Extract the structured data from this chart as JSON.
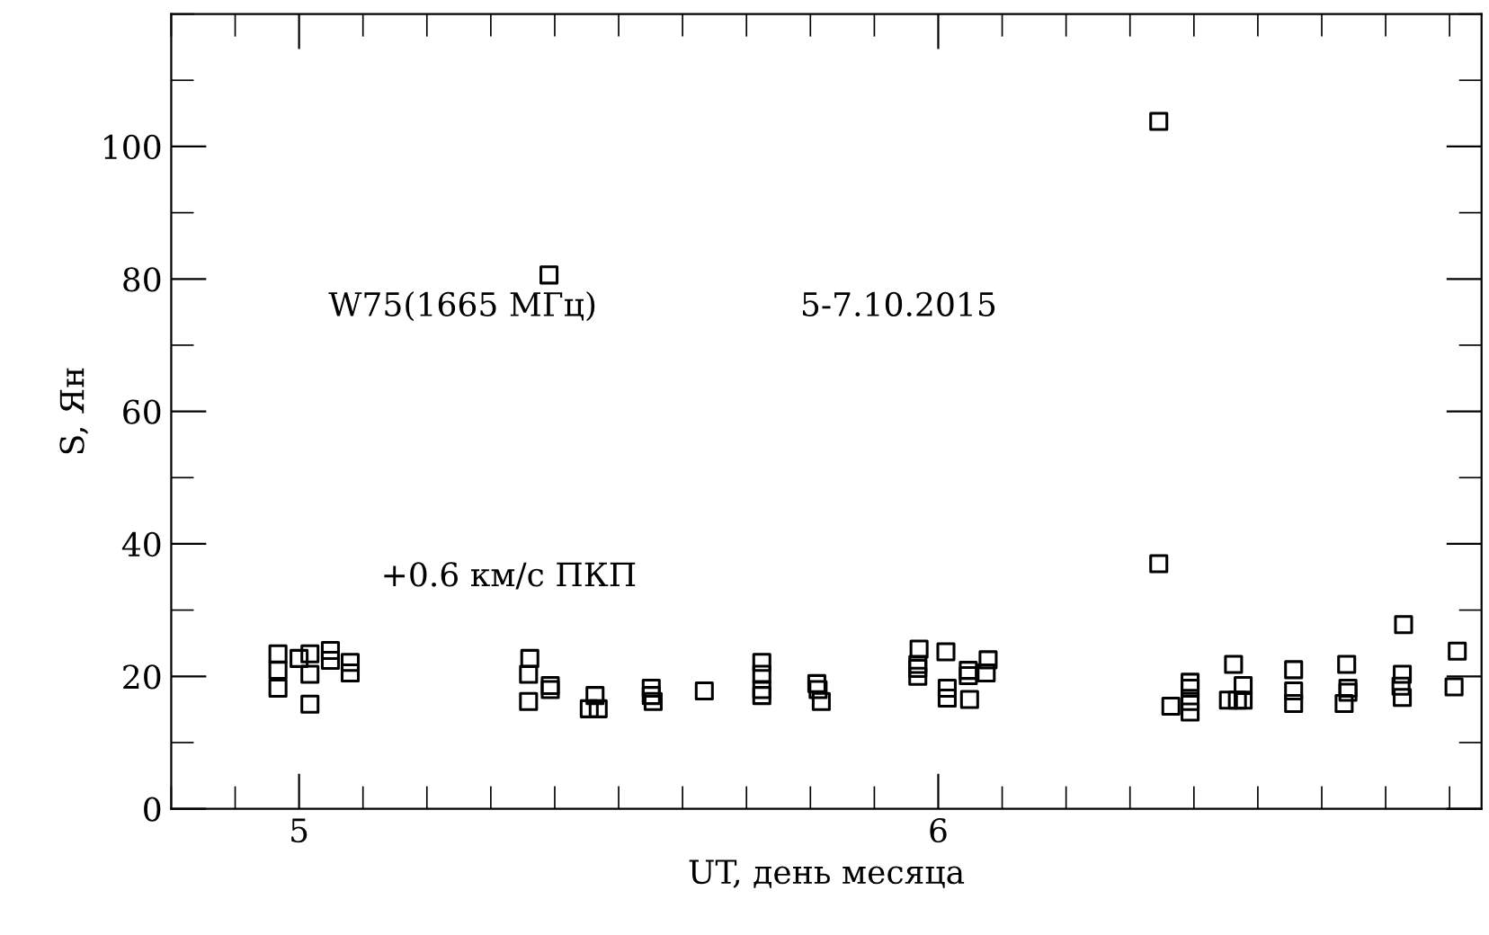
{
  "chart_data": {
    "type": "scatter",
    "xlabel": "UT, день месяца",
    "ylabel": "S, Ян",
    "annotations": [
      "W75(1665 МГц)",
      "5-7.10.2015",
      "+0.6 км/с ПКП"
    ],
    "xlim": [
      4.8,
      6.85
    ],
    "xticks": [
      5,
      6
    ],
    "ylim": [
      0,
      120
    ],
    "yticks": [
      0,
      20,
      40,
      60,
      80,
      100
    ],
    "grid": false,
    "marker": "square",
    "series": [
      {
        "color": "#000000",
        "x": [
          4.967,
          4.967,
          4.967,
          5.0,
          5.017,
          5.017,
          5.017,
          5.049,
          5.049,
          5.08,
          5.08,
          5.361,
          5.359,
          5.359,
          5.393,
          5.393,
          5.391,
          5.463,
          5.454,
          5.468,
          5.551,
          5.551,
          5.554,
          5.634,
          5.724,
          5.724,
          5.724,
          5.724,
          5.81,
          5.812,
          5.817,
          5.97,
          5.968,
          5.968,
          5.968,
          6.012,
          6.014,
          6.014,
          6.047,
          6.047,
          6.049,
          6.078,
          6.075,
          6.364,
          6.394,
          6.394,
          6.394,
          6.394,
          6.345,
          6.345,
          6.462,
          6.477,
          6.454,
          6.468,
          6.477,
          6.556,
          6.556,
          6.556,
          6.639,
          6.641,
          6.641,
          6.635,
          6.728,
          6.726,
          6.724,
          6.726,
          6.812,
          6.807
        ],
        "values": [
          23.4,
          20.9,
          18.2,
          22.7,
          23.4,
          20.3,
          15.8,
          23.9,
          22.4,
          22.1,
          20.5,
          22.7,
          20.3,
          16.2,
          18.6,
          18.0,
          80.6,
          17.1,
          15.1,
          15.1,
          18.2,
          17.1,
          16.2,
          17.8,
          22.1,
          20.3,
          18.0,
          17.1,
          18.9,
          18.0,
          16.2,
          24.1,
          21.8,
          21.2,
          20.0,
          23.7,
          18.2,
          16.7,
          20.9,
          20.1,
          16.5,
          22.5,
          20.5,
          15.5,
          19.1,
          18.2,
          16.2,
          14.6,
          103.8,
          37.0,
          21.8,
          18.6,
          16.4,
          16.4,
          16.4,
          21.0,
          17.8,
          15.9,
          21.8,
          18.2,
          17.6,
          15.9,
          27.8,
          20.3,
          18.5,
          16.8,
          23.8,
          18.4
        ]
      }
    ]
  }
}
